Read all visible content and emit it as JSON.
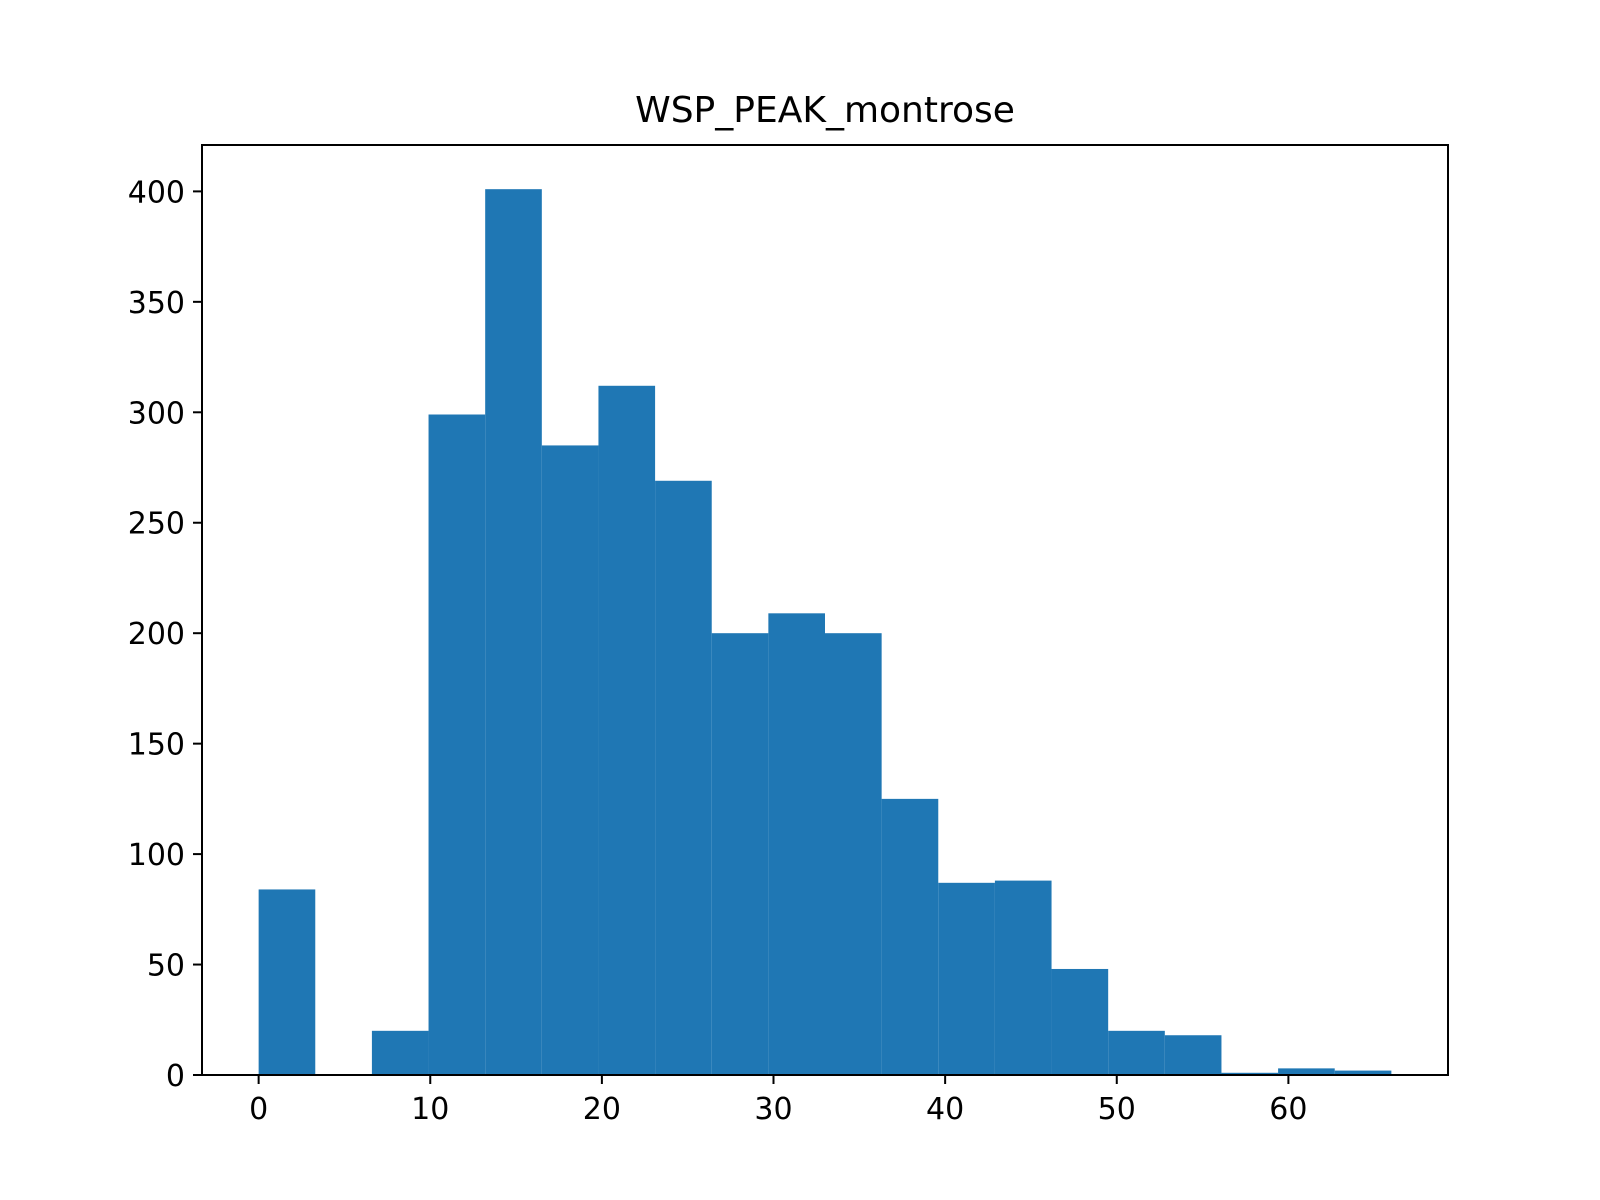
{
  "chart_data": {
    "type": "bar",
    "subtype": "histogram",
    "title": "WSP_PEAK_montrose",
    "xlabel": "",
    "ylabel": "",
    "xlim": [
      -3.3,
      69.3
    ],
    "ylim": [
      0,
      421
    ],
    "xticks": [
      0,
      10,
      20,
      30,
      40,
      50,
      60
    ],
    "yticks": [
      0,
      50,
      100,
      150,
      200,
      250,
      300,
      350,
      400
    ],
    "grid": false,
    "legend": "none",
    "bar_color": "#1f77b4",
    "bins": [
      {
        "x0": 0.0,
        "x1": 3.3,
        "count": 84
      },
      {
        "x0": 3.3,
        "x1": 6.6,
        "count": 0
      },
      {
        "x0": 6.6,
        "x1": 9.9,
        "count": 20
      },
      {
        "x0": 9.9,
        "x1": 13.2,
        "count": 299
      },
      {
        "x0": 13.2,
        "x1": 16.5,
        "count": 401
      },
      {
        "x0": 16.5,
        "x1": 19.8,
        "count": 285
      },
      {
        "x0": 19.8,
        "x1": 23.1,
        "count": 312
      },
      {
        "x0": 23.1,
        "x1": 26.4,
        "count": 269
      },
      {
        "x0": 26.4,
        "x1": 29.7,
        "count": 200
      },
      {
        "x0": 29.7,
        "x1": 33.0,
        "count": 209
      },
      {
        "x0": 33.0,
        "x1": 36.3,
        "count": 200
      },
      {
        "x0": 36.3,
        "x1": 39.6,
        "count": 125
      },
      {
        "x0": 39.6,
        "x1": 42.9,
        "count": 87
      },
      {
        "x0": 42.9,
        "x1": 46.2,
        "count": 88
      },
      {
        "x0": 46.2,
        "x1": 49.5,
        "count": 48
      },
      {
        "x0": 49.5,
        "x1": 52.8,
        "count": 20
      },
      {
        "x0": 52.8,
        "x1": 56.1,
        "count": 18
      },
      {
        "x0": 56.1,
        "x1": 59.4,
        "count": 1
      },
      {
        "x0": 59.4,
        "x1": 62.7,
        "count": 3
      },
      {
        "x0": 62.7,
        "x1": 66.0,
        "count": 2
      }
    ]
  }
}
